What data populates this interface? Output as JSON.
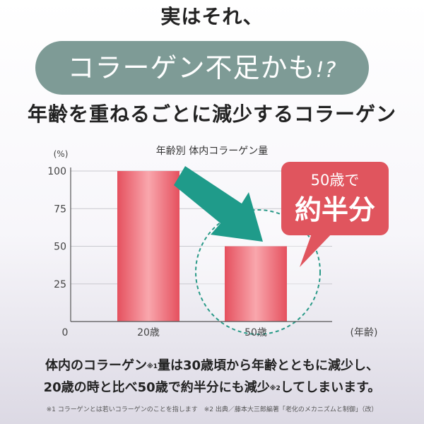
{
  "heading_top": "実はそれ、",
  "banner": {
    "main": "コラーゲン不足かも",
    "exclaim": "!?"
  },
  "subheading": "年齢を重ねるごとに減少するコラーゲン",
  "chart_data": {
    "type": "bar",
    "title": "年齢別 体内コラーゲン量",
    "ylabel": "(%)",
    "xlabel": "(年齢)",
    "origin_label": "0",
    "categories": [
      "20歳",
      "50歳"
    ],
    "values": [
      100,
      50
    ],
    "ylim": [
      0,
      100
    ],
    "yticks": [
      100,
      75,
      50,
      25
    ],
    "grid": true,
    "callout": {
      "line1": "50歳で",
      "line2": "約半分"
    }
  },
  "body": {
    "line1_a": "体内のコラーゲン",
    "note1": "※1",
    "line1_b": "量は30歳頃から年齢とともに減少し、",
    "line2_a": "20歳の時と比べ50歳で約半分にも減少",
    "note2": "※2",
    "line2_b": "してしまいます。"
  },
  "footnote": "※1 コラーゲンとは若いコラーゲンのことを指します　※2 出典／藤本大三郎編著「老化のメカニズムと制御」（改）",
  "colors": {
    "banner": "#7e9b96",
    "bar": "#e8606a",
    "arrow": "#1f9b8a",
    "callout": "#e0555e"
  }
}
